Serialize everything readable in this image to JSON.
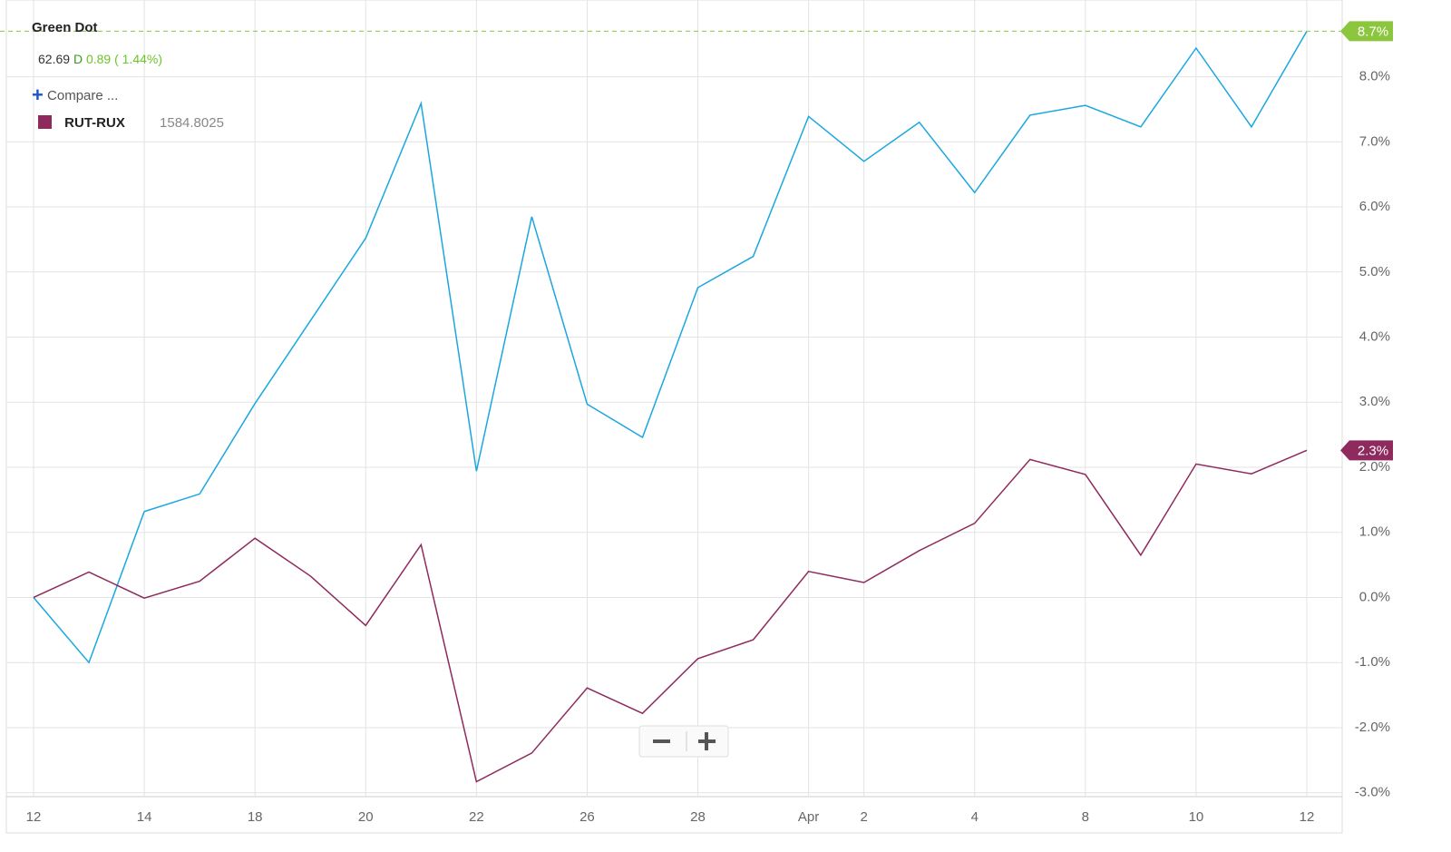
{
  "chart_data": {
    "type": "line",
    "quote": {
      "name": "Green Dot",
      "price": 62.69,
      "flag": "D",
      "change": 0.89,
      "change_pct": "( 1.44%)",
      "compare": "Compare ...",
      "compare_value": 1584.8025
    },
    "categories": [
      "12",
      null,
      "14",
      null,
      "18",
      null,
      "20",
      null,
      "22",
      null,
      "26",
      null,
      "28",
      null,
      "Apr",
      "2",
      null,
      "4",
      null,
      "8",
      null,
      "10",
      null,
      "12"
    ],
    "series": [
      {
        "name": "Green Dot",
        "color": "#1aa7e0",
        "values": [
          0.0,
          -1.0,
          1.32,
          1.59,
          2.98,
          4.25,
          5.52,
          7.59,
          1.94,
          5.85,
          2.97,
          2.46,
          4.76,
          5.24,
          7.39,
          6.7,
          7.3,
          6.22,
          7.41,
          7.56,
          7.23,
          8.44,
          7.23,
          8.7
        ],
        "end_label": "8.7%",
        "tag_color": "#8cc63f"
      },
      {
        "name": "RUT-RUX",
        "color": "#8e2a5e",
        "values": [
          0.0,
          0.39,
          -0.01,
          0.25,
          0.91,
          0.33,
          -0.43,
          0.81,
          -2.83,
          -2.39,
          -1.39,
          -1.78,
          -0.94,
          -0.65,
          0.4,
          0.23,
          0.72,
          1.14,
          2.12,
          1.89,
          0.65,
          2.05,
          1.9,
          2.26
        ],
        "end_label": "2.3%",
        "tag_color": "#8e2a5e"
      }
    ],
    "ylim": [
      -3,
      8.9
    ],
    "yticks": [
      {
        "value": -3,
        "label": "-3.0%"
      },
      {
        "value": -2,
        "label": "-2.0%"
      },
      {
        "value": -1,
        "label": "-1.0%"
      },
      {
        "value": 0,
        "label": "0.0%"
      },
      {
        "value": 1,
        "label": "1.0%"
      },
      {
        "value": 2,
        "label": "2.0%"
      },
      {
        "value": 3,
        "label": "3.0%"
      },
      {
        "value": 4,
        "label": "4.0%"
      },
      {
        "value": 5,
        "label": "5.0%"
      },
      {
        "value": 6,
        "label": "6.0%"
      },
      {
        "value": 7,
        "label": "7.0%"
      },
      {
        "value": 8,
        "label": "8.0%"
      }
    ],
    "grid": true
  }
}
